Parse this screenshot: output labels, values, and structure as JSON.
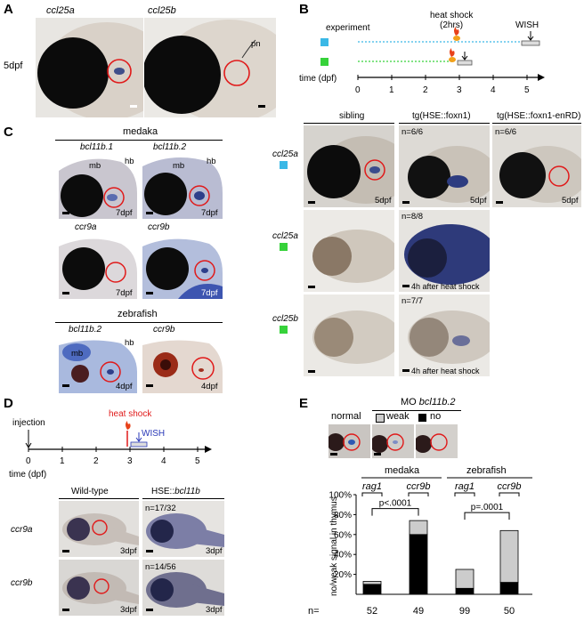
{
  "panels": {
    "a": "A",
    "b": "B",
    "c": "C",
    "d": "D",
    "e": "E"
  },
  "panelA": {
    "label_left": "ccl25a",
    "label_right": "ccl25b",
    "stage": "5dpf",
    "pn": "pn"
  },
  "panelB": {
    "experiment": "experiment",
    "heat_shock": "heat shock",
    "heat_shock_sub": "(2hrs)",
    "wish": "WISH",
    "time_label": "time (dpf)",
    "ticks": [
      "0",
      "1",
      "2",
      "3",
      "4",
      "5"
    ],
    "colors": {
      "blue": "#3ab8e6",
      "green": "#36d23a"
    },
    "columns": [
      "sibling",
      "tg(HSE::foxn1)",
      "tg(HSE::foxn1-enRD)"
    ],
    "rows": [
      {
        "gene": "ccl25a",
        "square": "blue",
        "stage_sibling": "5dpf",
        "stage_foxn1": "5dpf",
        "stage_enrd": "5dpf",
        "n_foxn1": "n=6/6",
        "n_enrd": "n=6/6"
      },
      {
        "gene": "ccl25a",
        "square": "green",
        "note": "4h after heat shock",
        "n_foxn1": "n=8/8"
      },
      {
        "gene": "ccl25b",
        "square": "green",
        "note": "4h after heat shock",
        "n_foxn1": "n=7/7"
      }
    ]
  },
  "panelC": {
    "medaka": "medaka",
    "zebrafish": "zebrafish",
    "images": [
      {
        "gene": "bcl11b.1",
        "mb": "mb",
        "hb": "hb",
        "stage": "7dpf"
      },
      {
        "gene": "bcl11b.2",
        "mb": "mb",
        "hb": "hb",
        "stage": "7dpf"
      },
      {
        "gene": "ccr9a",
        "stage": "7dpf"
      },
      {
        "gene": "ccr9b",
        "stage": "7dpf"
      },
      {
        "gene": "bcl11b.2",
        "mb": "mb",
        "hb": "hb",
        "stage": "4dpf"
      },
      {
        "gene": "ccr9b",
        "stage": "4dpf"
      }
    ]
  },
  "panelD": {
    "injection": "injection",
    "heat_shock": "heat shock",
    "wish": "WISH",
    "time_label": "time (dpf)",
    "ticks": [
      "0",
      "1",
      "2",
      "3",
      "4",
      "5"
    ],
    "col_wt": "Wild-type",
    "col_hse": "HSE::bcl11b",
    "rows": [
      {
        "gene": "ccr9a",
        "stage": "3dpf",
        "n": "n=17/32"
      },
      {
        "gene": "ccr9b",
        "stage": "3dpf",
        "n": "n=14/56"
      }
    ]
  },
  "panelE": {
    "mo_label": "MO bcl11b.2",
    "normal": "normal",
    "legend_weak": "weak",
    "legend_no": "no",
    "group_medaka": "medaka",
    "group_zebrafish": "zebrafish",
    "ylabel": "no/weak signal in thymus",
    "n_label": "n=",
    "pval_1": "p<.0001",
    "pval_2": "p=.0001"
  },
  "chart_data": {
    "type": "bar",
    "stacked": true,
    "categories": [
      "rag1",
      "ccr9b",
      "rag1",
      "ccr9b"
    ],
    "groups": [
      "medaka",
      "medaka",
      "zebrafish",
      "zebrafish"
    ],
    "n": [
      "52",
      "49",
      "99",
      "50"
    ],
    "series": [
      {
        "name": "no",
        "color": "#000000",
        "values": [
          10,
          60,
          6,
          12
        ]
      },
      {
        "name": "weak",
        "color": "#cccccc",
        "values": [
          3,
          14,
          19,
          52
        ]
      }
    ],
    "ylabel": "no/weak signal in thymus",
    "yticks": [
      "20%",
      "40%",
      "60%",
      "80%",
      "100%"
    ],
    "ylim": [
      0,
      100
    ]
  }
}
